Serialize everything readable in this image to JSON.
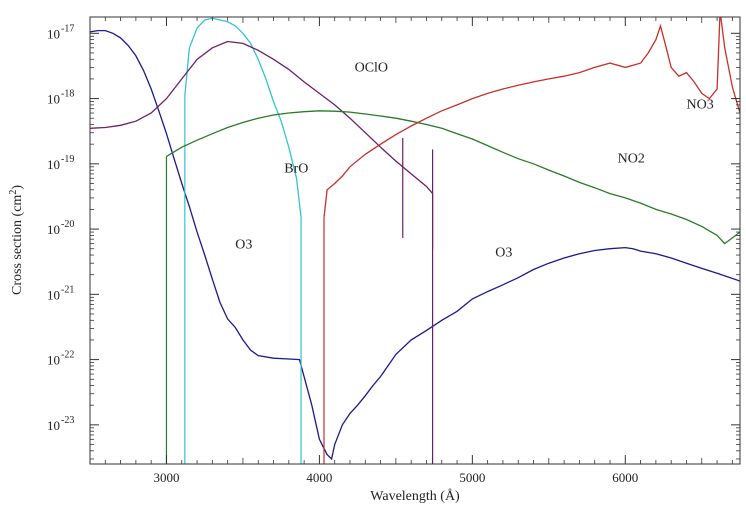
{
  "chart_data": {
    "type": "line",
    "xlabel": "Wavelength (Å)",
    "ylabel": "Cross section (cm²)",
    "xlim": [
      2500,
      6750
    ],
    "ylim_log10": [
      -23.6,
      -16.75
    ],
    "y_scale": "log",
    "grid": false,
    "x_ticks": [
      {
        "value": 3000,
        "label": "3000"
      },
      {
        "value": 4000,
        "label": "4000"
      },
      {
        "value": 5000,
        "label": "5000"
      },
      {
        "value": 6000,
        "label": "6000"
      }
    ],
    "y_ticks": [
      {
        "exp": -17,
        "label_base": "10",
        "label_exp": "-17"
      },
      {
        "exp": -18,
        "label_base": "10",
        "label_exp": "-18"
      },
      {
        "exp": -19,
        "label_base": "10",
        "label_exp": "-19"
      },
      {
        "exp": -20,
        "label_base": "10",
        "label_exp": "-20"
      },
      {
        "exp": -21,
        "label_base": "10",
        "label_exp": "-21"
      },
      {
        "exp": -22,
        "label_base": "10",
        "label_exp": "-22"
      },
      {
        "exp": -23,
        "label_base": "10",
        "label_exp": "-23"
      }
    ],
    "series": [
      {
        "name": "O3",
        "color": "#1a1a8c",
        "x": [
          2500,
          2550,
          2600,
          2650,
          2700,
          2750,
          2800,
          2850,
          2900,
          2950,
          3000,
          3050,
          3100,
          3150,
          3200,
          3250,
          3300,
          3350,
          3400,
          3450,
          3500,
          3550,
          3600,
          3700,
          3800,
          3870,
          3950,
          4000,
          4050,
          4080,
          4100,
          4150,
          4200,
          4250,
          4300,
          4350,
          4400,
          4500,
          4600,
          4700,
          4800,
          4900,
          5000,
          5100,
          5200,
          5300,
          5400,
          5500,
          5600,
          5700,
          5800,
          5900,
          6000,
          6050,
          6100,
          6200,
          6300,
          6400,
          6500,
          6600,
          6750
        ],
        "y": [
          1.05e-17,
          1.1e-17,
          1.1e-17,
          1e-17,
          8.5e-18,
          6.5e-18,
          4.5e-18,
          2.7e-18,
          1.4e-18,
          6.5e-19,
          2.9e-19,
          1.2e-19,
          5e-20,
          2.2e-20,
          9e-21,
          4e-21,
          1.7e-21,
          7.5e-22,
          4.2e-22,
          3.1e-22,
          2e-22,
          1.4e-22,
          1.15e-22,
          1.05e-22,
          1.02e-22,
          1e-22,
          2e-23,
          6e-24,
          3.5e-24,
          3e-24,
          5e-24,
          1e-23,
          1.5e-23,
          2e-23,
          2.8e-23,
          4e-23,
          5.5e-23,
          1.2e-22,
          2e-22,
          2.8e-22,
          4e-22,
          5.5e-22,
          8.5e-22,
          1.1e-21,
          1.4e-21,
          1.8e-21,
          2.4e-21,
          3e-21,
          3.6e-21,
          4.2e-21,
          4.7e-21,
          5e-21,
          5.2e-21,
          5e-21,
          4.6e-21,
          4.2e-21,
          3.6e-21,
          3e-21,
          2.5e-21,
          2.1e-21,
          1.6e-21
        ]
      },
      {
        "name": "BrO",
        "color": "#33c4d4",
        "x": [
          3120,
          3150,
          3200,
          3250,
          3300,
          3350,
          3400,
          3450,
          3500,
          3550,
          3600,
          3650,
          3700,
          3750,
          3800,
          3850,
          3880
        ],
        "y": [
          1.1e-18,
          6e-18,
          1.2e-17,
          1.6e-17,
          1.7e-17,
          1.6e-17,
          1.5e-17,
          1.3e-17,
          1e-17,
          7e-18,
          4e-18,
          2e-18,
          9e-19,
          4.5e-19,
          1.8e-19,
          6e-20,
          1.5e-20
        ]
      },
      {
        "name": "OClO",
        "color": "#6b1f6b",
        "x": [
          2500,
          2600,
          2700,
          2800,
          2900,
          3000,
          3100,
          3200,
          3300,
          3400,
          3500,
          3600,
          3700,
          3800,
          3900,
          4000,
          4100,
          4200,
          4300,
          4400,
          4500,
          4600,
          4700,
          4740
        ],
        "y": [
          3.5e-19,
          3.6e-19,
          3.9e-19,
          4.5e-19,
          6e-19,
          1e-18,
          2e-18,
          4e-18,
          6e-18,
          7.5e-18,
          7e-18,
          5.5e-18,
          4e-18,
          2.8e-18,
          1.8e-18,
          1.2e-18,
          8e-19,
          5e-19,
          3e-19,
          1.8e-19,
          1.1e-19,
          7e-20,
          4.5e-20,
          3.5e-20
        ]
      },
      {
        "name": "NO2",
        "color": "#2a7a2a",
        "x": [
          3000,
          3100,
          3200,
          3300,
          3400,
          3500,
          3600,
          3700,
          3800,
          3900,
          4000,
          4100,
          4200,
          4300,
          4400,
          4500,
          4600,
          4700,
          4800,
          4900,
          5000,
          5100,
          5200,
          5300,
          5400,
          5500,
          5600,
          5700,
          5800,
          5900,
          6000,
          6100,
          6200,
          6300,
          6400,
          6500,
          6600,
          6650,
          6750
        ],
        "y": [
          1.3e-19,
          1.8e-19,
          2.3e-19,
          2.9e-19,
          3.6e-19,
          4.3e-19,
          5e-19,
          5.6e-19,
          6e-19,
          6.3e-19,
          6.5e-19,
          6.4e-19,
          6.2e-19,
          5.8e-19,
          5.4e-19,
          5e-19,
          4.5e-19,
          4e-19,
          3.5e-19,
          2.9e-19,
          2.4e-19,
          1.9e-19,
          1.5e-19,
          1.2e-19,
          1e-19,
          8e-20,
          6.5e-20,
          5.2e-20,
          4.3e-20,
          3.5e-20,
          3e-20,
          2.5e-20,
          2e-20,
          1.7e-20,
          1.4e-20,
          1.1e-20,
          8e-21,
          6e-21,
          9e-21
        ]
      },
      {
        "name": "NO3",
        "color": "#c8302a",
        "x": [
          4030,
          4050,
          4100,
          4150,
          4200,
          4300,
          4400,
          4500,
          4600,
          4700,
          4800,
          4900,
          5000,
          5100,
          5200,
          5300,
          5400,
          5500,
          5600,
          5700,
          5800,
          5900,
          6000,
          6100,
          6150,
          6200,
          6230,
          6260,
          6300,
          6350,
          6400,
          6450,
          6500,
          6550,
          6600,
          6620,
          6650,
          6700,
          6750
        ],
        "y": [
          1.5e-20,
          4e-20,
          5e-20,
          6.5e-20,
          9e-20,
          1.4e-19,
          2e-19,
          2.8e-19,
          3.8e-19,
          5e-19,
          6.5e-19,
          8e-19,
          1e-18,
          1.2e-18,
          1.4e-18,
          1.6e-18,
          1.8e-18,
          2e-18,
          2.2e-18,
          2.5e-18,
          3e-18,
          3.5e-18,
          3e-18,
          3.5e-18,
          5e-18,
          8e-18,
          1.3e-17,
          7e-18,
          3e-18,
          2.2e-18,
          2.5e-18,
          1.8e-18,
          1.2e-18,
          1e-18,
          1.4e-18,
          2.2e-17,
          6e-18,
          1.5e-18,
          6e-19
        ]
      }
    ],
    "annotations": [
      {
        "text": "OClO",
        "x": 4230,
        "y": 2.6e-18
      },
      {
        "text": "BrO",
        "x": 3770,
        "y": 7.3e-20
      },
      {
        "text": "NO3",
        "x": 6400,
        "y": 7e-19
      },
      {
        "text": "NO2",
        "x": 5950,
        "y": 1.05e-19
      },
      {
        "text": "O3",
        "x": 3450,
        "y": 5e-21
      },
      {
        "text": "O3",
        "x": 5150,
        "y": 3.8e-21
      }
    ],
    "cutoffs": [
      {
        "series": "OClO",
        "x": 4545,
        "y": 3e-20
      },
      {
        "series": "OClO",
        "x": 4740,
        "y": 2e-20
      }
    ]
  }
}
